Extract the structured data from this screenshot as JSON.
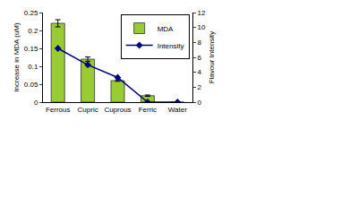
{
  "chart_data": {
    "type": "bar",
    "categories": [
      "Ferrous",
      "Cupric",
      "Cuprous",
      "Ferric",
      "Water"
    ],
    "series": [
      {
        "name": "MDA",
        "type": "bar",
        "color": "#99cc33",
        "values": [
          0.22,
          0.12,
          0.06,
          0.018,
          0
        ],
        "errors": [
          0.01,
          0.006,
          0.002,
          0.002,
          0
        ]
      },
      {
        "name": "Intensity",
        "type": "line",
        "axis": "y2",
        "color": "#000080",
        "marker": "diamond",
        "values": [
          7.2,
          5,
          3.3,
          0,
          0
        ]
      }
    ],
    "ylabel": "Increase in MDA (uM)",
    "y2label": "Flavour Intensity",
    "ylim": [
      0,
      0.25
    ],
    "yticks": [
      0,
      0.05,
      0.1,
      0.15,
      0.2,
      0.25
    ],
    "y2lim": [
      0,
      12
    ],
    "y2ticks": [
      0,
      2,
      4,
      6,
      8,
      10,
      12
    ],
    "grid": false,
    "legend": "top right"
  }
}
